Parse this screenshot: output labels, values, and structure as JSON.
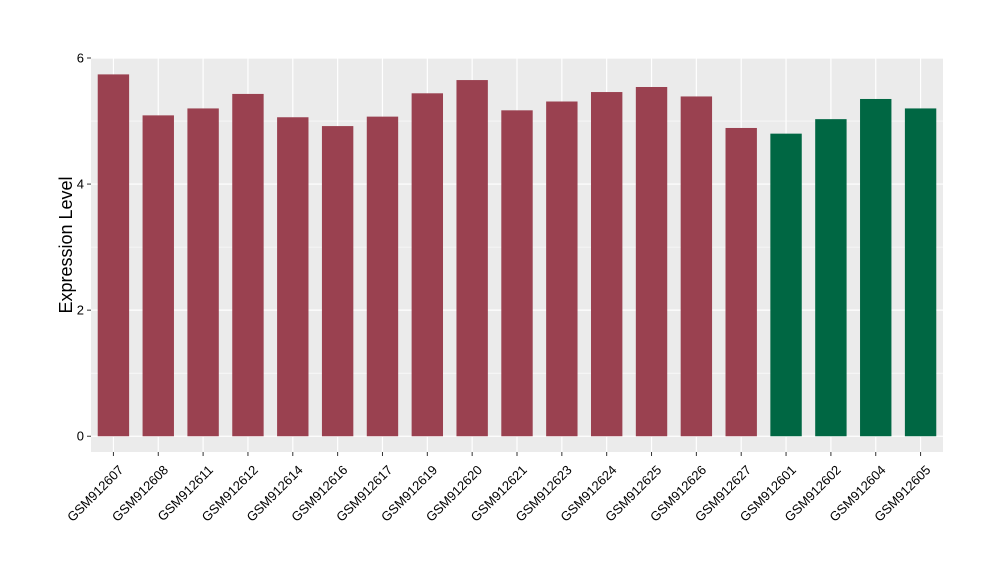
{
  "chart_data": {
    "type": "bar",
    "title": "",
    "xlabel": "",
    "ylabel": "Expression Level",
    "ylim": [
      -0.25,
      6.0
    ],
    "yticks": [
      0,
      2,
      4,
      6
    ],
    "yticks_text": [
      "0",
      "2",
      "4",
      "6"
    ],
    "grid": true,
    "legend": "none",
    "colors": {
      "panel_background": "#EBEBEB",
      "grid": "#FFFFFF",
      "group_a": "#9A4150",
      "group_b": "#006743"
    },
    "categories": [
      "GSM912607",
      "GSM912608",
      "GSM912611",
      "GSM912612",
      "GSM912614",
      "GSM912616",
      "GSM912617",
      "GSM912619",
      "GSM912620",
      "GSM912621",
      "GSM912623",
      "GSM912624",
      "GSM912625",
      "GSM912626",
      "GSM912627",
      "GSM912601",
      "GSM912602",
      "GSM912604",
      "GSM912605"
    ],
    "values": [
      5.74,
      5.09,
      5.2,
      5.43,
      5.06,
      4.92,
      5.07,
      5.44,
      5.65,
      5.17,
      5.31,
      5.46,
      5.54,
      5.39,
      4.89,
      4.8,
      5.03,
      5.35,
      5.2
    ],
    "bar_groups": [
      "a",
      "a",
      "a",
      "a",
      "a",
      "a",
      "a",
      "a",
      "a",
      "a",
      "a",
      "a",
      "a",
      "a",
      "a",
      "b",
      "b",
      "b",
      "b"
    ]
  }
}
